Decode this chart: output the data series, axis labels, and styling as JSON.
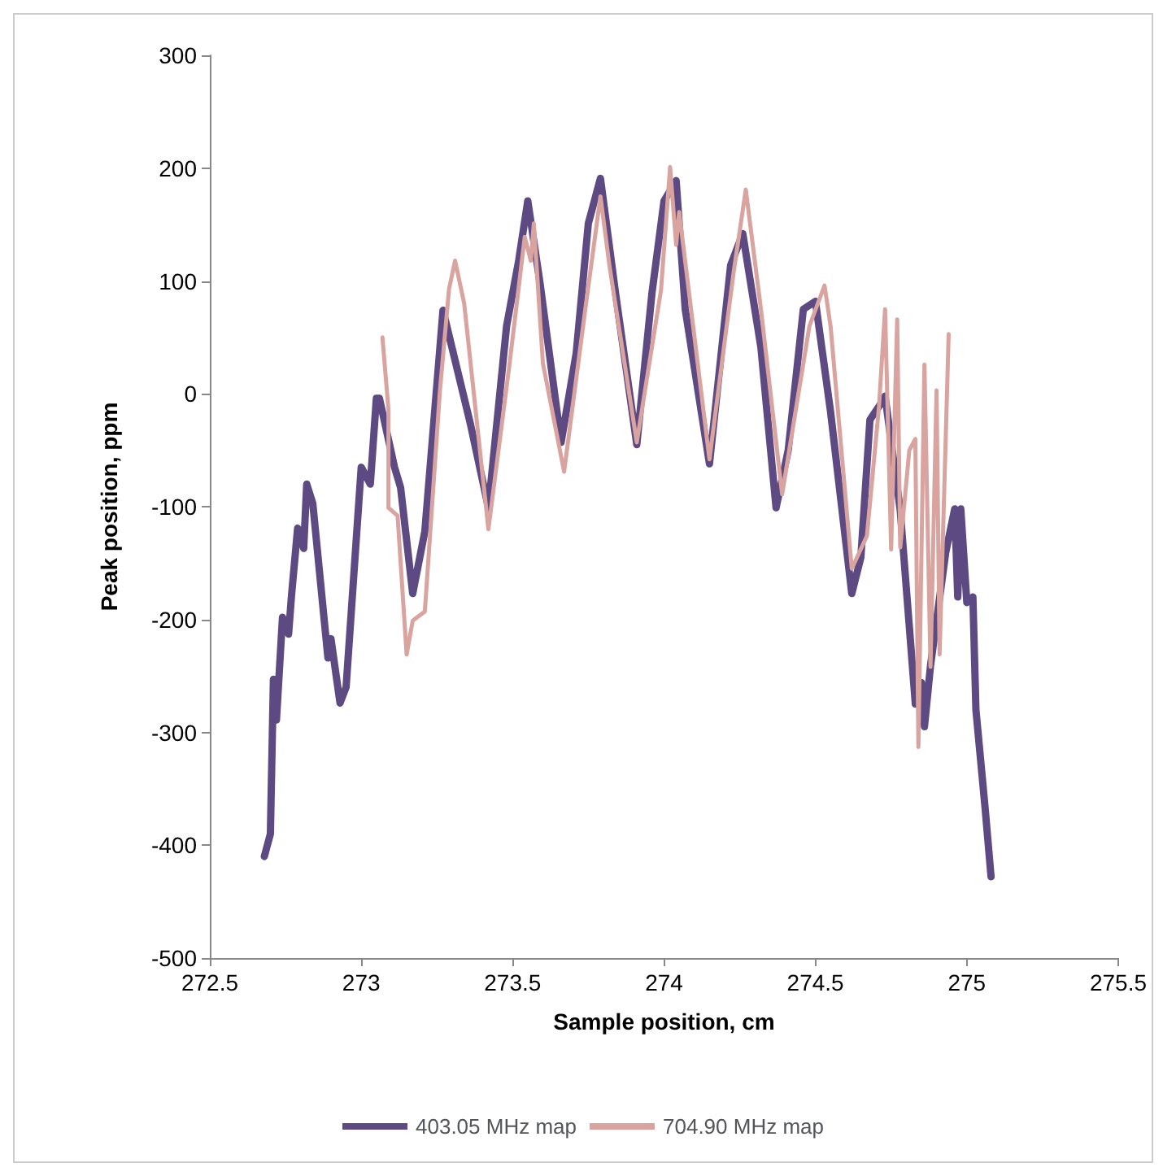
{
  "chart_data": {
    "type": "line",
    "xlabel": "Sample position, cm",
    "ylabel": "Peak position, ppm",
    "xlim": [
      272.5,
      275.5
    ],
    "xticks": [
      272.5,
      273,
      273.5,
      274,
      274.5,
      275,
      275.5
    ],
    "ylim": [
      -500,
      300
    ],
    "yticks": [
      -500,
      -400,
      -300,
      -200,
      -100,
      0,
      100,
      200,
      300
    ],
    "grid": false,
    "legend": "bottom",
    "marker": "none",
    "line_style": "solid",
    "series": [
      {
        "name": "403.05 MHz map",
        "color": "#5e4a82",
        "x": [
          272.68,
          272.7,
          272.71,
          272.72,
          272.74,
          272.76,
          272.77,
          272.79,
          272.81,
          272.82,
          272.84,
          272.89,
          272.9,
          272.93,
          272.95,
          273.0,
          273.03,
          273.05,
          273.06,
          273.11,
          273.13,
          273.17,
          273.21,
          273.27,
          273.36,
          273.42,
          273.48,
          273.52,
          273.55,
          273.59,
          273.66,
          273.71,
          273.75,
          273.79,
          273.84,
          273.91,
          273.96,
          274.0,
          274.04,
          274.07,
          274.15,
          274.22,
          274.26,
          274.32,
          274.37,
          274.41,
          274.46,
          274.5,
          274.55,
          274.62,
          274.65,
          274.68,
          274.72,
          274.73,
          274.78,
          274.83,
          274.85,
          274.86,
          274.88,
          274.93,
          274.96,
          274.97,
          274.98,
          275.0,
          275.02,
          275.03,
          275.06,
          275.08
        ],
        "values": [
          -410,
          -390,
          -253,
          -289,
          -198,
          -213,
          -178,
          -119,
          -137,
          -80,
          -97,
          -234,
          -217,
          -274,
          -260,
          -65,
          -80,
          -4,
          -4,
          -65,
          -83,
          -177,
          -122,
          74,
          -26,
          -101,
          60,
          118,
          171,
          99,
          -43,
          36,
          151,
          191,
          89,
          -45,
          89,
          171,
          189,
          75,
          -62,
          114,
          142,
          41,
          -101,
          -50,
          75,
          82,
          -16,
          -177,
          -145,
          -23,
          -7,
          -2,
          -103,
          -275,
          -256,
          -295,
          -241,
          -141,
          -102,
          -180,
          -102,
          -185,
          -180,
          -280,
          -366,
          -428
        ]
      },
      {
        "name": "704.90 MHz map",
        "color": "#d9a49f",
        "x": [
          273.07,
          273.09,
          273.09,
          273.12,
          273.15,
          273.17,
          273.21,
          273.26,
          273.29,
          273.31,
          273.34,
          273.42,
          273.49,
          273.54,
          273.56,
          273.57,
          273.6,
          273.67,
          273.74,
          273.79,
          273.82,
          273.91,
          273.99,
          274.02,
          274.04,
          274.05,
          274.15,
          274.23,
          274.27,
          274.32,
          274.39,
          274.48,
          274.53,
          274.55,
          274.62,
          274.67,
          274.71,
          274.73,
          274.75,
          274.77,
          274.78,
          274.81,
          274.83,
          274.84,
          274.86,
          274.88,
          274.9,
          274.91,
          274.94
        ],
        "values": [
          50,
          -14,
          -101,
          -108,
          -231,
          -201,
          -193,
          3,
          93,
          118,
          80,
          -120,
          27,
          139,
          118,
          151,
          27,
          -69,
          75,
          175,
          113,
          -43,
          92,
          201,
          132,
          161,
          -58,
          108,
          181,
          75,
          -89,
          60,
          96,
          60,
          -155,
          -126,
          -11,
          75,
          -138,
          66,
          -136,
          -50,
          -40,
          -313,
          26,
          -242,
          3,
          -231,
          53
        ]
      }
    ]
  }
}
